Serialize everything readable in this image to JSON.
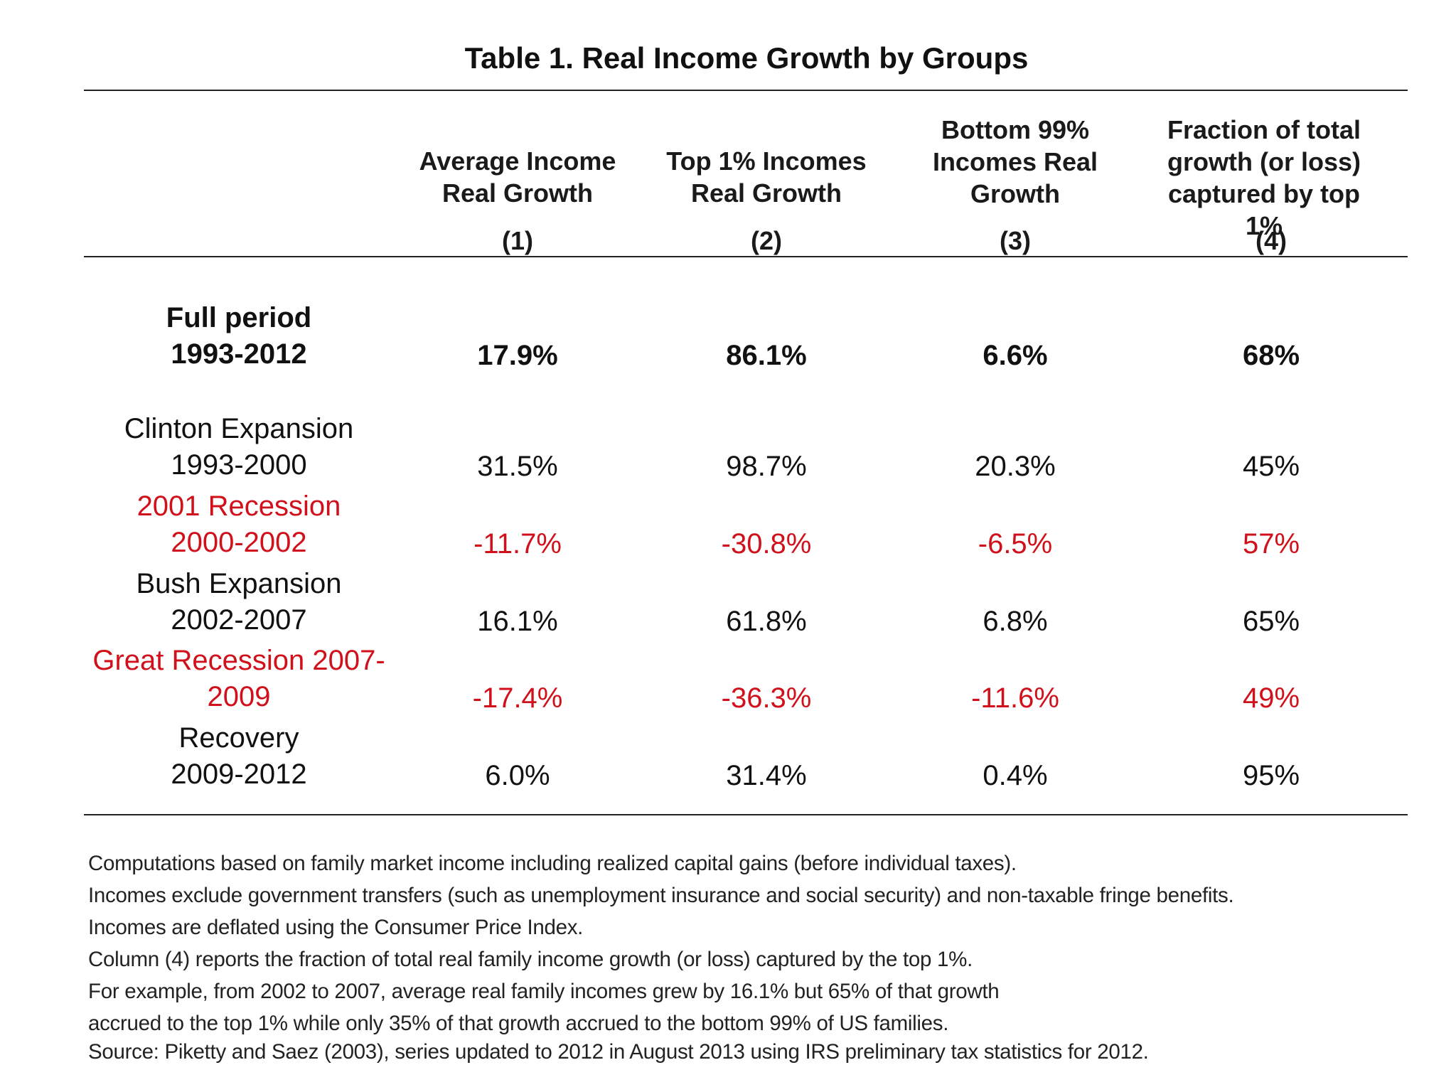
{
  "chart_data": {
    "type": "table",
    "title": "Table 1. Real Income Growth by Groups",
    "columns": [
      {
        "label": "Average Income Real Growth",
        "number": "(1)"
      },
      {
        "label": "Top 1% Incomes Real Growth",
        "number": "(2)"
      },
      {
        "label": "Bottom 99% Incomes Real Growth",
        "number": "(3)"
      },
      {
        "label": "Fraction of total growth (or loss) captured by top 1%",
        "number": "(4)"
      }
    ],
    "rows": [
      {
        "label_line1": "Full period",
        "label_line2": "1993-2012",
        "values": [
          "17.9%",
          "86.1%",
          "6.6%",
          "68%"
        ],
        "style": "bold"
      },
      {
        "label_line1": "Clinton Expansion",
        "label_line2": "1993-2000",
        "values": [
          "31.5%",
          "98.7%",
          "20.3%",
          "45%"
        ],
        "style": "normal"
      },
      {
        "label_line1": "2001 Recession",
        "label_line2": "2000-2002",
        "values": [
          "-11.7%",
          "-30.8%",
          "-6.5%",
          "57%"
        ],
        "style": "red"
      },
      {
        "label_line1": "Bush Expansion",
        "label_line2": "2002-2007",
        "values": [
          "16.1%",
          "61.8%",
          "6.8%",
          "65%"
        ],
        "style": "normal"
      },
      {
        "label_line1": "Great Recession 2007-",
        "label_line2": "2009",
        "values": [
          "-17.4%",
          "-36.3%",
          "-11.6%",
          "49%"
        ],
        "style": "red"
      },
      {
        "label_line1": "Recovery",
        "label_line2": "2009-2012",
        "values": [
          "6.0%",
          "31.4%",
          "0.4%",
          "95%"
        ],
        "style": "normal"
      }
    ],
    "notes": [
      "Computations based on family market income including realized capital gains (before individual taxes).",
      "Incomes exclude government transfers (such as unemployment insurance and social security) and non-taxable fringe benefits.",
      "Incomes are deflated using the Consumer Price Index.",
      "Column (4) reports the fraction of total real family income growth (or loss) captured by the top 1%.",
      "For example, from 2002 to 2007, average real family incomes grew by 16.1% but 65% of that growth",
      "accrued to the top 1% while only 35% of that growth accrued to the bottom 99% of US families.",
      "Source: Piketty and Saez (2003), series updated to 2012 in August 2013 using IRS preliminary tax statistics for 2012."
    ],
    "colors": {
      "text": "#111111",
      "negative_period": "#d0101a"
    }
  }
}
